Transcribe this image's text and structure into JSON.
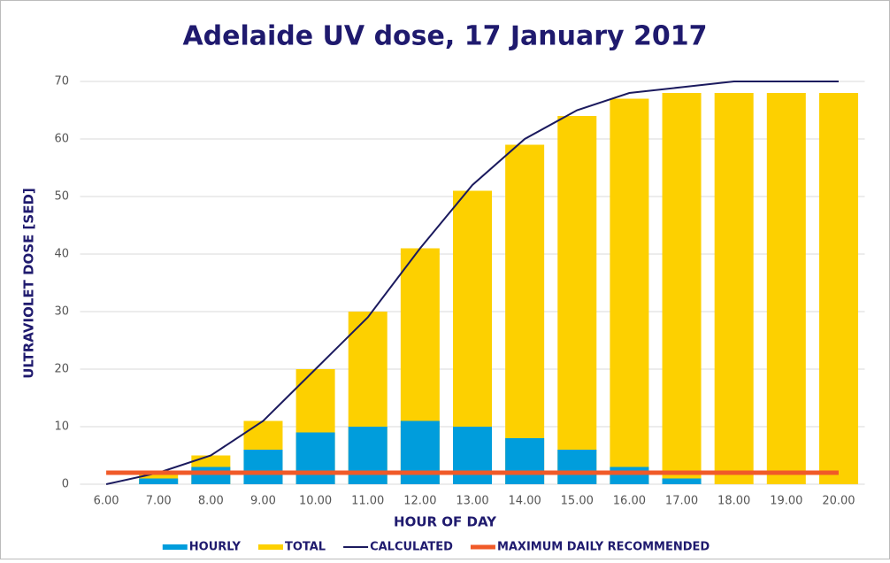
{
  "chart_data": {
    "type": "bar",
    "title": "Adelaide UV dose, 17 January 2017",
    "x_label": "HOUR OF DAY",
    "y_label": "ULTRAVIOLET DOSE [SED]",
    "categories": [
      "6.00",
      "7.00",
      "8.00",
      "9.00",
      "10.00",
      "11.00",
      "12.00",
      "13.00",
      "14.00",
      "15.00",
      "16.00",
      "17.00",
      "18.00",
      "19.00",
      "20.00"
    ],
    "series": [
      {
        "name": "TOTAL",
        "type": "bar",
        "color": "#fdd000",
        "values": [
          0,
          2,
          5,
          11,
          20,
          30,
          41,
          51,
          59,
          64,
          67,
          68,
          68,
          68,
          68
        ]
      },
      {
        "name": "HOURLY",
        "type": "bar",
        "color": "#009ddc",
        "values": [
          0,
          1,
          3,
          6,
          9,
          10,
          11,
          10,
          8,
          6,
          3,
          1,
          0,
          0,
          0
        ]
      },
      {
        "name": "CALCULATED",
        "type": "line",
        "color": "#1b1a5e",
        "values": [
          0,
          2,
          5,
          11,
          20,
          29,
          41,
          52,
          60,
          65,
          68,
          69,
          70,
          70,
          70
        ]
      },
      {
        "name": "MAXIMUM DAILY RECOMMENDED",
        "type": "line",
        "color": "#f05a28",
        "values": [
          2,
          2,
          2,
          2,
          2,
          2,
          2,
          2,
          2,
          2,
          2,
          2,
          2,
          2,
          2
        ]
      }
    ],
    "legend_order": [
      1,
      0,
      2,
      3
    ],
    "ylim": [
      0,
      70
    ],
    "yticks": [
      0,
      10,
      20,
      30,
      40,
      50,
      60,
      70
    ],
    "grid": true
  }
}
